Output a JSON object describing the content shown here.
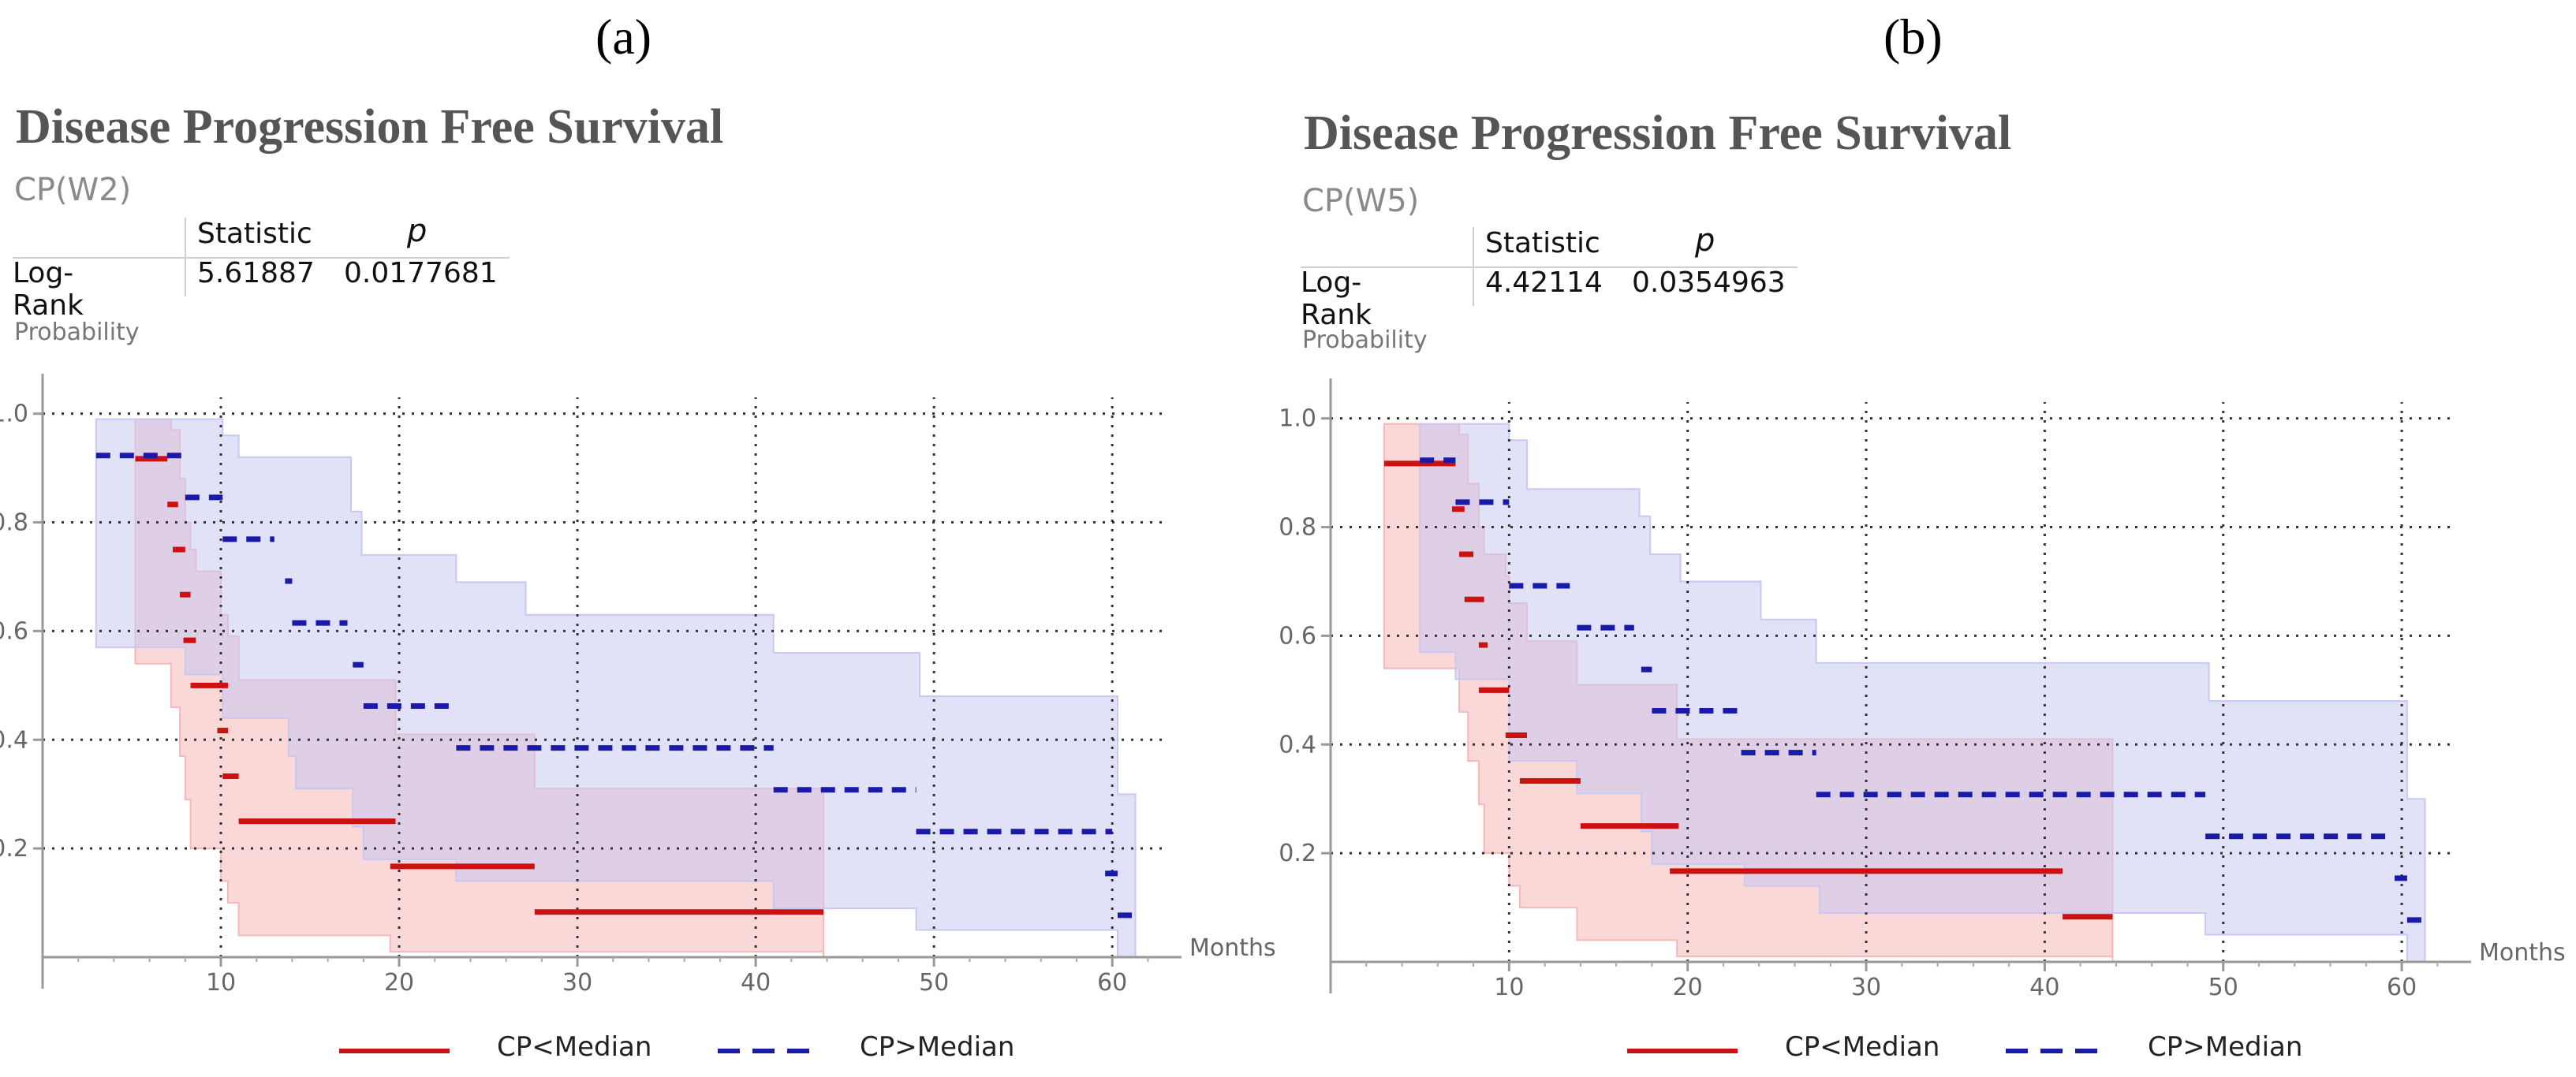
{
  "chart_data": [
    {
      "type": "line",
      "panel": "(a)",
      "title": "Disease Progression  Free Survival",
      "subtitle": "CP(W2)",
      "stats_table": {
        "headers": [
          "",
          "Statistic",
          "p"
        ],
        "rows": [
          [
            "Log-Rank",
            "5.61887",
            "0.0177681"
          ]
        ]
      },
      "xlabel": "Months",
      "ylabel": "Probability",
      "xlim": [
        0,
        63
      ],
      "ylim": [
        0,
        1.03
      ],
      "xticks": [
        "10",
        "20",
        "30",
        "40",
        "50",
        "60"
      ],
      "yticks": [
        "0.2",
        "0.4",
        "0.6",
        "0.8",
        "1.0"
      ],
      "legend_position": "bottom",
      "series": [
        {
          "name": "CP<Median",
          "color": "#cc1111",
          "style": "solid",
          "steps": [
            [
              5.2,
              7.0,
              0.917
            ],
            [
              7.0,
              7.6,
              0.833
            ],
            [
              7.3,
              8.0,
              0.75
            ],
            [
              7.7,
              8.3,
              0.667
            ],
            [
              7.9,
              8.6,
              0.583
            ],
            [
              8.3,
              10.4,
              0.5
            ],
            [
              9.8,
              10.4,
              0.417
            ],
            [
              10.1,
              11.0,
              0.333
            ],
            [
              11.0,
              19.8,
              0.25
            ],
            [
              19.5,
              27.6,
              0.167
            ],
            [
              27.6,
              43.8,
              0.083
            ]
          ],
          "ci_upper": [
            [
              5.2,
              0.99
            ],
            [
              7.2,
              0.97
            ],
            [
              7.7,
              0.88
            ],
            [
              8.0,
              0.8
            ],
            [
              8.3,
              0.75
            ],
            [
              8.6,
              0.71
            ],
            [
              10.0,
              0.63
            ],
            [
              10.4,
              0.59
            ],
            [
              11.0,
              0.51
            ],
            [
              13.8,
              0.51
            ],
            [
              19.8,
              0.41
            ],
            [
              27.6,
              0.31
            ],
            [
              43.8,
              0.31
            ]
          ],
          "ci_lower": [
            [
              5.2,
              0.54
            ],
            [
              7.2,
              0.46
            ],
            [
              7.7,
              0.37
            ],
            [
              8.0,
              0.29
            ],
            [
              8.3,
              0.2
            ],
            [
              10.0,
              0.14
            ],
            [
              10.4,
              0.1
            ],
            [
              11.0,
              0.04
            ],
            [
              19.5,
              0.01
            ],
            [
              43.8,
              0.0
            ]
          ],
          "ci_color": "#f6b8b8"
        },
        {
          "name": "CP>Median",
          "color": "#1a1aa8",
          "style": "dashed",
          "steps": [
            [
              3.0,
              7.9,
              0.923
            ],
            [
              8.0,
              10.1,
              0.846
            ],
            [
              10.1,
              13.0,
              0.769
            ],
            [
              13.6,
              14.0,
              0.692
            ],
            [
              14.0,
              17.1,
              0.615
            ],
            [
              17.4,
              18.0,
              0.538
            ],
            [
              18.0,
              23.2,
              0.462
            ],
            [
              23.2,
              41.0,
              0.385
            ],
            [
              41.0,
              49.0,
              0.308
            ],
            [
              49.0,
              60.0,
              0.231
            ],
            [
              59.6,
              60.3,
              0.154
            ],
            [
              60.3,
              61.3,
              0.077
            ]
          ],
          "ci_upper": [
            [
              3.0,
              0.99
            ],
            [
              9.9,
              0.99
            ],
            [
              10.1,
              0.96
            ],
            [
              11.0,
              0.92
            ],
            [
              17.3,
              0.82
            ],
            [
              17.9,
              0.74
            ],
            [
              23.2,
              0.69
            ],
            [
              27.1,
              0.63
            ],
            [
              40.9,
              0.63
            ],
            [
              41.0,
              0.56
            ],
            [
              49.0,
              0.56
            ],
            [
              49.2,
              0.48
            ],
            [
              60.0,
              0.48
            ],
            [
              60.3,
              0.3
            ],
            [
              61.3,
              0.3
            ]
          ],
          "ci_lower": [
            [
              3.0,
              0.57
            ],
            [
              8.0,
              0.52
            ],
            [
              10.1,
              0.44
            ],
            [
              13.8,
              0.37
            ],
            [
              14.2,
              0.31
            ],
            [
              17.4,
              0.24
            ],
            [
              18.0,
              0.18
            ],
            [
              23.2,
              0.14
            ],
            [
              27.6,
              0.14
            ],
            [
              41.0,
              0.09
            ],
            [
              49.0,
              0.05
            ],
            [
              60.0,
              0.05
            ],
            [
              60.3,
              0.0
            ],
            [
              61.3,
              0.0
            ]
          ],
          "ci_color": "#c8c8f2"
        }
      ]
    },
    {
      "type": "line",
      "panel": "(b)",
      "title": "Disease Progression  Free Survival",
      "subtitle": "CP(W5)",
      "stats_table": {
        "headers": [
          "",
          "Statistic",
          "p"
        ],
        "rows": [
          [
            "Log-Rank",
            "4.42114",
            "0.0354963"
          ]
        ]
      },
      "xlabel": "Months",
      "ylabel": "Probability",
      "xlim": [
        0,
        63
      ],
      "ylim": [
        0,
        1.03
      ],
      "xticks": [
        "10",
        "20",
        "30",
        "40",
        "50",
        "60"
      ],
      "yticks": [
        "0.2",
        "0.4",
        "0.6",
        "0.8",
        "1.0"
      ],
      "legend_position": "bottom",
      "series": [
        {
          "name": "CP<Median",
          "color": "#cc1111",
          "style": "solid",
          "steps": [
            [
              3.0,
              7.0,
              0.917
            ],
            [
              6.8,
              7.5,
              0.833
            ],
            [
              7.2,
              8.0,
              0.75
            ],
            [
              7.5,
              8.6,
              0.667
            ],
            [
              8.3,
              8.8,
              0.583
            ],
            [
              8.3,
              10.0,
              0.5
            ],
            [
              9.8,
              11.0,
              0.417
            ],
            [
              10.6,
              14.0,
              0.333
            ],
            [
              14.0,
              19.5,
              0.25
            ],
            [
              19.0,
              41.0,
              0.167
            ],
            [
              41.0,
              43.8,
              0.083
            ]
          ],
          "ci_upper": [
            [
              3.0,
              0.99
            ],
            [
              7.2,
              0.97
            ],
            [
              7.7,
              0.88
            ],
            [
              8.3,
              0.8
            ],
            [
              8.6,
              0.75
            ],
            [
              9.8,
              0.71
            ],
            [
              10.0,
              0.66
            ],
            [
              11.0,
              0.59
            ],
            [
              13.8,
              0.51
            ],
            [
              19.4,
              0.41
            ],
            [
              43.8,
              0.41
            ]
          ],
          "ci_lower": [
            [
              3.0,
              0.54
            ],
            [
              5.2,
              0.54
            ],
            [
              7.2,
              0.46
            ],
            [
              7.7,
              0.37
            ],
            [
              8.3,
              0.29
            ],
            [
              8.6,
              0.2
            ],
            [
              10.0,
              0.14
            ],
            [
              10.6,
              0.1
            ],
            [
              13.8,
              0.04
            ],
            [
              19.4,
              0.01
            ],
            [
              43.8,
              0.0
            ]
          ],
          "ci_color": "#f6b8b8"
        },
        {
          "name": "CP>Median",
          "color": "#1a1aa8",
          "style": "dashed",
          "steps": [
            [
              5.0,
              7.0,
              0.923
            ],
            [
              7.0,
              10.0,
              0.846
            ],
            [
              10.0,
              13.4,
              0.692
            ],
            [
              13.8,
              17.0,
              0.615
            ],
            [
              17.4,
              18.0,
              0.538
            ],
            [
              18.0,
              23.0,
              0.462
            ],
            [
              23.0,
              27.2,
              0.385
            ],
            [
              27.2,
              49.0,
              0.308
            ],
            [
              49.0,
              59.6,
              0.231
            ],
            [
              59.6,
              60.3,
              0.154
            ],
            [
              60.3,
              61.3,
              0.077
            ]
          ],
          "ci_upper": [
            [
              5.0,
              0.99
            ],
            [
              9.9,
              0.99
            ],
            [
              10.0,
              0.96
            ],
            [
              11.0,
              0.87
            ],
            [
              17.3,
              0.82
            ],
            [
              17.9,
              0.75
            ],
            [
              19.6,
              0.7
            ],
            [
              24.1,
              0.63
            ],
            [
              27.2,
              0.55
            ],
            [
              40.9,
              0.55
            ],
            [
              49.0,
              0.55
            ],
            [
              49.2,
              0.48
            ],
            [
              60.0,
              0.48
            ],
            [
              60.3,
              0.3
            ],
            [
              61.3,
              0.3
            ]
          ],
          "ci_lower": [
            [
              5.0,
              0.57
            ],
            [
              7.0,
              0.52
            ],
            [
              10.0,
              0.37
            ],
            [
              13.8,
              0.31
            ],
            [
              17.4,
              0.24
            ],
            [
              18.0,
              0.18
            ],
            [
              23.2,
              0.14
            ],
            [
              27.4,
              0.09
            ],
            [
              41.0,
              0.09
            ],
            [
              49.0,
              0.05
            ],
            [
              60.0,
              0.05
            ],
            [
              60.3,
              0.0
            ],
            [
              61.3,
              0.0
            ]
          ],
          "ci_color": "#c8c8f2"
        }
      ]
    }
  ]
}
